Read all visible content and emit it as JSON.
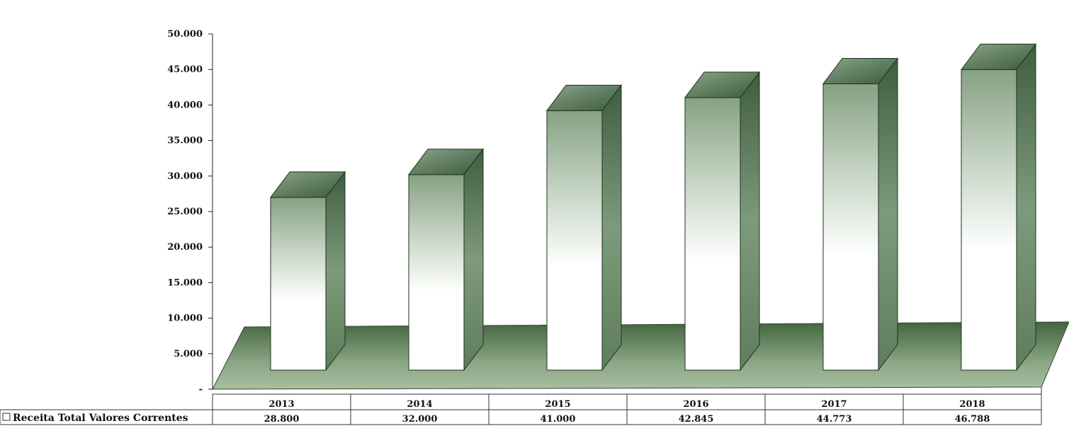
{
  "chart_data": {
    "type": "bar",
    "title": "",
    "xlabel": "",
    "ylabel": "",
    "categories": [
      "2013",
      "2014",
      "2015",
      "2016",
      "2017",
      "2018"
    ],
    "series": [
      {
        "name": "Receita Total Valores Correntes",
        "values": [
          28800,
          32000,
          41000,
          42845,
          44773,
          46788
        ],
        "value_labels": [
          "28.800",
          "32.000",
          "41.000",
          "42.845",
          "44.773",
          "46.788"
        ]
      }
    ],
    "ylim": [
      0,
      50000
    ],
    "yticks": [
      0,
      5000,
      10000,
      15000,
      20000,
      25000,
      30000,
      35000,
      40000,
      45000,
      50000
    ],
    "ytick_labels": [
      "-",
      "5.000",
      "10.000",
      "15.000",
      "20.000",
      "25.000",
      "30.000",
      "35.000",
      "40.000",
      "45.000",
      "50.000"
    ],
    "legend_position": "bottom data table",
    "style": "3d-column",
    "colors": {
      "bar_front": "#ffffff",
      "bar_shade": "#6f8f6f",
      "bar_dark": "#3d5a3d",
      "floor": "#6b8a68"
    }
  }
}
